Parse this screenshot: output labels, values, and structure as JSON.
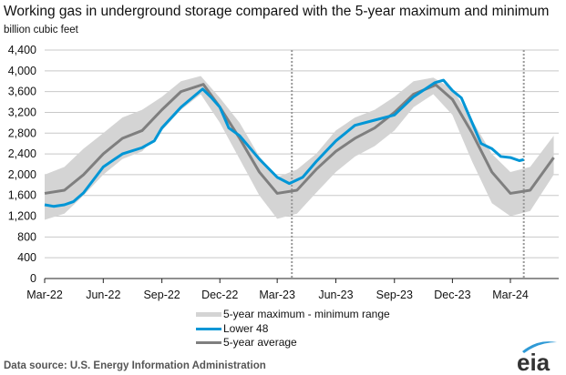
{
  "chart_data": {
    "type": "line",
    "title": "Working gas in underground  storage compared with the 5-year maximum and minimum",
    "ylabel": "billion cubic feet",
    "xlabel": "",
    "ylim": [
      0,
      4400
    ],
    "yticks": [
      0,
      400,
      800,
      1200,
      1600,
      2000,
      2400,
      2800,
      3200,
      3600,
      4000,
      4400
    ],
    "ytick_labels": [
      "0",
      "400",
      "800",
      "1,200",
      "1,600",
      "2,000",
      "2,400",
      "2,800",
      "3,200",
      "3,600",
      "4,000",
      "4,400"
    ],
    "xticks": [
      "2022-03-01",
      "2022-06-01",
      "2022-09-01",
      "2022-12-01",
      "2023-03-01",
      "2023-06-01",
      "2023-09-01",
      "2023-12-01",
      "2024-03-01"
    ],
    "xtick_labels": [
      "Mar-22",
      "Jun-22",
      "Sep-22",
      "Dec-22",
      "Mar-23",
      "Jun-23",
      "Sep-23",
      "Dec-23",
      "Mar-24"
    ],
    "xlim": [
      "2022-03-01",
      "2024-05-15"
    ],
    "grid": "horizontal",
    "dashed_markers": [
      "2023-03-24",
      "2024-03-22"
    ],
    "legend_position": "bottom",
    "colors": {
      "range": "#d4d4d4",
      "lower48": "#0096d6",
      "average": "#7f7f7f"
    },
    "band": {
      "name": "5-year maximum - minimum range",
      "x": [
        "2022-03-01",
        "2022-04-01",
        "2022-05-01",
        "2022-06-01",
        "2022-07-01",
        "2022-08-01",
        "2022-09-01",
        "2022-10-01",
        "2022-11-01",
        "2022-12-01",
        "2023-01-01",
        "2023-02-01",
        "2023-03-01",
        "2023-04-01",
        "2023-05-01",
        "2023-06-01",
        "2023-07-01",
        "2023-08-01",
        "2023-09-01",
        "2023-10-01",
        "2023-11-01",
        "2023-12-01",
        "2024-01-01",
        "2024-02-01",
        "2024-03-01",
        "2024-04-01",
        "2024-05-08"
      ],
      "max": [
        2000,
        2150,
        2500,
        2800,
        3100,
        3250,
        3500,
        3800,
        3900,
        3480,
        3000,
        2350,
        1950,
        2100,
        2400,
        2850,
        3100,
        3250,
        3500,
        3800,
        3870,
        3650,
        3050,
        2400,
        2050,
        2150,
        2750
      ],
      "min": [
        1130,
        1250,
        1600,
        2000,
        2300,
        2450,
        2850,
        3250,
        3550,
        3000,
        2300,
        1600,
        1150,
        1250,
        1650,
        2050,
        2350,
        2550,
        2850,
        3300,
        3550,
        3150,
        2250,
        1450,
        1200,
        1300,
        2000
      ]
    },
    "series": [
      {
        "name": "Lower 48",
        "x": [
          "2022-03-01",
          "2022-03-15",
          "2022-04-01",
          "2022-04-15",
          "2022-05-01",
          "2022-06-01",
          "2022-07-01",
          "2022-08-01",
          "2022-08-20",
          "2022-09-01",
          "2022-10-01",
          "2022-11-04",
          "2022-11-18",
          "2022-12-01",
          "2022-12-15",
          "2023-01-01",
          "2023-02-01",
          "2023-03-01",
          "2023-03-20",
          "2023-04-10",
          "2023-05-01",
          "2023-06-01",
          "2023-07-01",
          "2023-08-01",
          "2023-09-01",
          "2023-10-01",
          "2023-11-03",
          "2023-11-17",
          "2023-12-01",
          "2023-12-15",
          "2024-01-01",
          "2024-01-15",
          "2024-02-01",
          "2024-02-15",
          "2024-03-01",
          "2024-03-15",
          "2024-03-22"
        ],
        "values": [
          1420,
          1390,
          1420,
          1480,
          1650,
          2150,
          2400,
          2520,
          2650,
          2900,
          3300,
          3650,
          3480,
          3300,
          2900,
          2750,
          2300,
          1950,
          1830,
          1950,
          2250,
          2650,
          2950,
          3050,
          3150,
          3500,
          3770,
          3820,
          3620,
          3480,
          3000,
          2600,
          2500,
          2350,
          2330,
          2270,
          2290
        ]
      },
      {
        "name": "5-year average",
        "x": [
          "2022-03-01",
          "2022-04-01",
          "2022-05-01",
          "2022-06-01",
          "2022-07-01",
          "2022-08-01",
          "2022-09-01",
          "2022-10-01",
          "2022-11-05",
          "2022-12-01",
          "2023-01-01",
          "2023-02-01",
          "2023-03-01",
          "2023-04-01",
          "2023-05-01",
          "2023-06-01",
          "2023-07-01",
          "2023-08-01",
          "2023-09-01",
          "2023-10-01",
          "2023-11-05",
          "2023-12-01",
          "2024-01-01",
          "2024-02-01",
          "2024-03-01",
          "2024-04-01",
          "2024-05-08"
        ],
        "values": [
          1640,
          1700,
          2000,
          2400,
          2700,
          2850,
          3250,
          3600,
          3740,
          3300,
          2700,
          2050,
          1640,
          1700,
          2100,
          2450,
          2700,
          2900,
          3200,
          3550,
          3730,
          3450,
          2800,
          2050,
          1640,
          1700,
          2330
        ]
      }
    ]
  },
  "legend": {
    "range": "5-year maximum - minimum range",
    "lower48": "Lower 48",
    "average": "5-year average"
  },
  "footer": {
    "source": "Data source:  U.S. Energy Information Administration",
    "logo_text": "eia"
  }
}
